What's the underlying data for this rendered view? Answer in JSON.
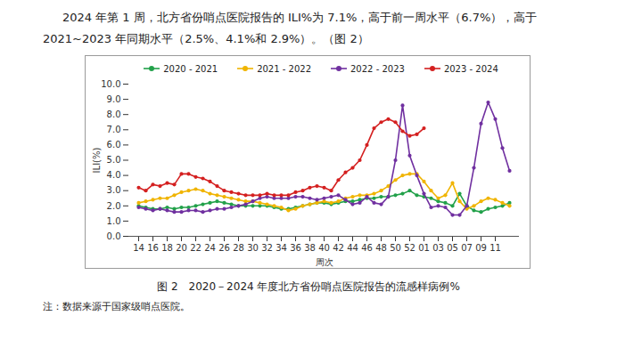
{
  "chart_data": {
    "type": "line",
    "subtitle": "2024 年第 1 周，北方省份哨点医院报告的 ILI%为 7.1%，高于前一周水平（6.7%），高于 2021~2023 年同期水平（2.5%、4.1%和 2.9%）。（图 2）",
    "title": "图 2　2020－2024 年度北方省份哨点医院报告的流感样病例%",
    "annotations": [
      "注：数据来源于国家级哨点医院。"
    ],
    "x_label": "周次",
    "y_label": "ILI(%)",
    "categories": [
      "14",
      null,
      "16",
      null,
      "18",
      null,
      "20",
      null,
      "22",
      null,
      "24",
      null,
      "26",
      null,
      "28",
      null,
      "30",
      null,
      "32",
      null,
      "34",
      null,
      "36",
      null,
      "38",
      null,
      "40",
      null,
      "42",
      null,
      "44",
      null,
      "46",
      null,
      "48",
      null,
      "50",
      null,
      "52",
      null,
      "01",
      null,
      "03",
      null,
      "05",
      null,
      "07",
      null,
      "09",
      null,
      "11",
      null,
      null
    ],
    "ylim": [
      0,
      10
    ],
    "yticks": [
      {
        "value": 0,
        "label": "0.0"
      },
      {
        "value": 1,
        "label": "1.0"
      },
      {
        "value": 2,
        "label": "2.0"
      },
      {
        "value": 3,
        "label": "3.0"
      },
      {
        "value": 4,
        "label": "4.0"
      },
      {
        "value": 5,
        "label": "5.0"
      },
      {
        "value": 6,
        "label": "6.0"
      },
      {
        "value": 7,
        "label": "7.0"
      },
      {
        "value": 8,
        "label": "8.0"
      },
      {
        "value": 9,
        "label": "9.0"
      },
      {
        "value": 10,
        "label": "10.0"
      }
    ],
    "grid": false,
    "legend": "top",
    "marker": "circle",
    "series": [
      {
        "name": "2020 - 2021",
        "color": "#22a14a",
        "values": [
          2.0,
          1.9,
          1.8,
          1.8,
          1.9,
          1.8,
          1.9,
          1.9,
          2.0,
          2.1,
          2.2,
          2.3,
          2.2,
          2.1,
          2.0,
          2.0,
          2.0,
          2.0,
          2.0,
          1.9,
          1.8,
          1.8,
          1.9,
          2.0,
          2.1,
          2.2,
          2.2,
          2.1,
          2.2,
          2.3,
          2.3,
          2.4,
          2.5,
          2.5,
          2.6,
          2.6,
          2.7,
          2.8,
          3.0,
          2.7,
          2.6,
          2.5,
          2.3,
          2.2,
          2.0,
          2.8,
          2.0,
          1.7,
          1.6,
          1.8,
          1.9,
          2.0,
          2.2
        ]
      },
      {
        "name": "2021 - 2022",
        "color": "#f0b400",
        "values": [
          2.2,
          2.3,
          2.4,
          2.5,
          2.5,
          2.7,
          2.9,
          3.0,
          3.1,
          3.0,
          2.8,
          2.7,
          2.6,
          2.5,
          2.4,
          2.3,
          2.3,
          2.2,
          2.1,
          2.0,
          1.9,
          1.7,
          1.8,
          2.0,
          2.1,
          2.2,
          2.3,
          2.2,
          2.3,
          2.5,
          2.6,
          2.7,
          2.7,
          2.8,
          3.0,
          3.3,
          3.7,
          4.0,
          4.1,
          4.1,
          3.6,
          3.0,
          2.5,
          2.7,
          3.5,
          2.3,
          1.8,
          2.0,
          2.3,
          2.5,
          2.4,
          2.2,
          2.0
        ]
      },
      {
        "name": "2022 - 2023",
        "color": "#7030a0",
        "values": [
          1.9,
          1.8,
          1.7,
          1.8,
          1.7,
          1.6,
          1.6,
          1.7,
          1.7,
          1.6,
          1.7,
          1.8,
          1.8,
          1.9,
          2.0,
          2.1,
          2.3,
          2.5,
          2.6,
          2.5,
          2.5,
          2.5,
          2.6,
          2.6,
          2.5,
          2.4,
          2.5,
          2.6,
          2.7,
          2.4,
          2.1,
          2.2,
          2.6,
          2.2,
          2.1,
          2.6,
          5.0,
          8.6,
          5.3,
          4.0,
          2.8,
          1.9,
          2.0,
          1.9,
          1.4,
          1.4,
          2.0,
          4.5,
          7.4,
          8.8,
          7.7,
          5.8,
          4.3
        ]
      },
      {
        "name": "2023 - 2024",
        "color": "#d42020",
        "values": [
          3.2,
          3.0,
          3.4,
          3.3,
          3.5,
          3.4,
          4.1,
          4.1,
          3.9,
          3.8,
          3.6,
          3.3,
          3.0,
          2.9,
          2.8,
          2.7,
          2.7,
          2.7,
          2.8,
          2.7,
          2.7,
          2.7,
          2.9,
          3.0,
          3.2,
          3.3,
          3.2,
          3.0,
          3.7,
          4.2,
          4.5,
          5.0,
          6.0,
          7.1,
          7.5,
          7.7,
          7.5,
          6.9,
          6.6,
          6.7,
          7.1,
          null,
          null,
          null,
          null,
          null,
          null,
          null,
          null,
          null,
          null,
          null,
          null
        ]
      }
    ]
  }
}
